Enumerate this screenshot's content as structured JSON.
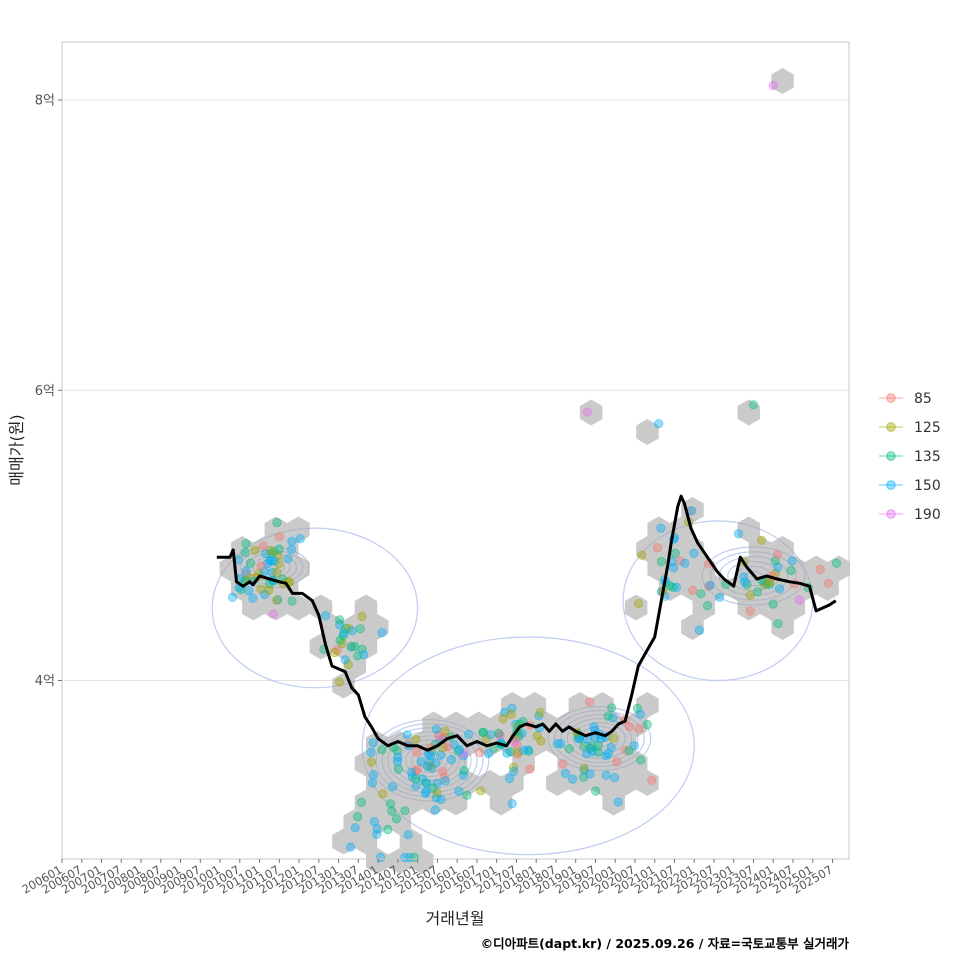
{
  "chart_data": {
    "type": "scatter",
    "xlabel": "거래년월",
    "ylabel": "매매가(원)",
    "caption": "©디아파트(dapt.kr) / 2025.09.26 / 자료=국토교통부 실거래가",
    "x_ticks": [
      "200601",
      "200607",
      "200701",
      "200707",
      "200801",
      "200807",
      "200901",
      "200907",
      "201001",
      "201007",
      "201101",
      "201107",
      "201201",
      "201207",
      "201301",
      "201307",
      "201401",
      "201407",
      "201501",
      "201507",
      "201601",
      "201607",
      "201701",
      "201707",
      "201801",
      "201807",
      "201901",
      "201907",
      "202001",
      "202007",
      "202101",
      "202107",
      "202201",
      "202207",
      "202301",
      "202307",
      "202401",
      "202407",
      "202501",
      "202507"
    ],
    "xlim": [
      "2006-01",
      "2025-12"
    ],
    "ylim": [
      2.77,
      8.4
    ],
    "y_ticks": [
      {
        "label": "4억",
        "value": 4
      },
      {
        "label": "6억",
        "value": 6
      },
      {
        "label": "8억",
        "value": 8
      }
    ],
    "grid": true,
    "legend_position": "right",
    "legend": [
      {
        "name": "85",
        "color": "#F8766D"
      },
      {
        "name": "125",
        "color": "#A3A500"
      },
      {
        "name": "135",
        "color": "#00BF7D"
      },
      {
        "name": "150",
        "color": "#00B0F6"
      },
      {
        "name": "190",
        "color": "#E76BF3"
      }
    ],
    "colors": {
      "trend": "#000000",
      "contour": "#B8C8F0",
      "hex": "#A6A6A6",
      "grid": "#E2E2E2",
      "panel_border": "#C8C8C8"
    },
    "trend": [
      [
        "2009-12",
        4.85
      ],
      [
        "2010-04",
        4.85
      ],
      [
        "2010-05",
        4.9
      ],
      [
        "2010-06",
        4.68
      ],
      [
        "2010-08",
        4.65
      ],
      [
        "2010-10",
        4.68
      ],
      [
        "2010-11",
        4.66
      ],
      [
        "2011-01",
        4.72
      ],
      [
        "2011-04",
        4.7
      ],
      [
        "2011-07",
        4.68
      ],
      [
        "2011-09",
        4.67
      ],
      [
        "2011-11",
        4.6
      ],
      [
        "2012-02",
        4.6
      ],
      [
        "2012-05",
        4.55
      ],
      [
        "2012-07",
        4.45
      ],
      [
        "2012-09",
        4.25
      ],
      [
        "2012-11",
        4.1
      ],
      [
        "2013-01",
        4.08
      ],
      [
        "2013-03",
        4.06
      ],
      [
        "2013-05",
        3.95
      ],
      [
        "2013-07",
        3.9
      ],
      [
        "2013-09",
        3.75
      ],
      [
        "2013-11",
        3.68
      ],
      [
        "2014-01",
        3.6
      ],
      [
        "2014-04",
        3.55
      ],
      [
        "2014-07",
        3.58
      ],
      [
        "2014-10",
        3.55
      ],
      [
        "2015-01",
        3.55
      ],
      [
        "2015-04",
        3.52
      ],
      [
        "2015-07",
        3.55
      ],
      [
        "2015-10",
        3.6
      ],
      [
        "2016-01",
        3.62
      ],
      [
        "2016-04",
        3.55
      ],
      [
        "2016-07",
        3.58
      ],
      [
        "2016-10",
        3.55
      ],
      [
        "2017-01",
        3.57
      ],
      [
        "2017-04",
        3.55
      ],
      [
        "2017-06",
        3.62
      ],
      [
        "2017-08",
        3.68
      ],
      [
        "2017-10",
        3.7
      ],
      [
        "2018-01",
        3.68
      ],
      [
        "2018-03",
        3.7
      ],
      [
        "2018-05",
        3.65
      ],
      [
        "2018-07",
        3.7
      ],
      [
        "2018-09",
        3.65
      ],
      [
        "2018-11",
        3.68
      ],
      [
        "2019-01",
        3.65
      ],
      [
        "2019-04",
        3.62
      ],
      [
        "2019-07",
        3.64
      ],
      [
        "2019-10",
        3.62
      ],
      [
        "2019-12",
        3.65
      ],
      [
        "2020-02",
        3.7
      ],
      [
        "2020-04",
        3.72
      ],
      [
        "2020-06",
        3.9
      ],
      [
        "2020-08",
        4.1
      ],
      [
        "2020-10",
        4.18
      ],
      [
        "2021-01",
        4.3
      ],
      [
        "2021-03",
        4.55
      ],
      [
        "2021-05",
        4.8
      ],
      [
        "2021-06",
        4.95
      ],
      [
        "2021-08",
        5.2
      ],
      [
        "2021-09",
        5.27
      ],
      [
        "2021-10",
        5.22
      ],
      [
        "2021-12",
        5.05
      ],
      [
        "2022-02",
        4.95
      ],
      [
        "2022-05",
        4.85
      ],
      [
        "2022-08",
        4.75
      ],
      [
        "2022-10",
        4.7
      ],
      [
        "2023-01",
        4.65
      ],
      [
        "2023-03",
        4.85
      ],
      [
        "2023-05",
        4.78
      ],
      [
        "2023-08",
        4.7
      ],
      [
        "2023-11",
        4.72
      ],
      [
        "2024-02",
        4.7
      ],
      [
        "2024-06",
        4.68
      ],
      [
        "2024-09",
        4.67
      ],
      [
        "2024-12",
        4.65
      ],
      [
        "2025-02",
        4.48
      ],
      [
        "2025-04",
        4.5
      ],
      [
        "2025-06",
        4.52
      ],
      [
        "2025-08",
        4.55
      ]
    ]
  }
}
